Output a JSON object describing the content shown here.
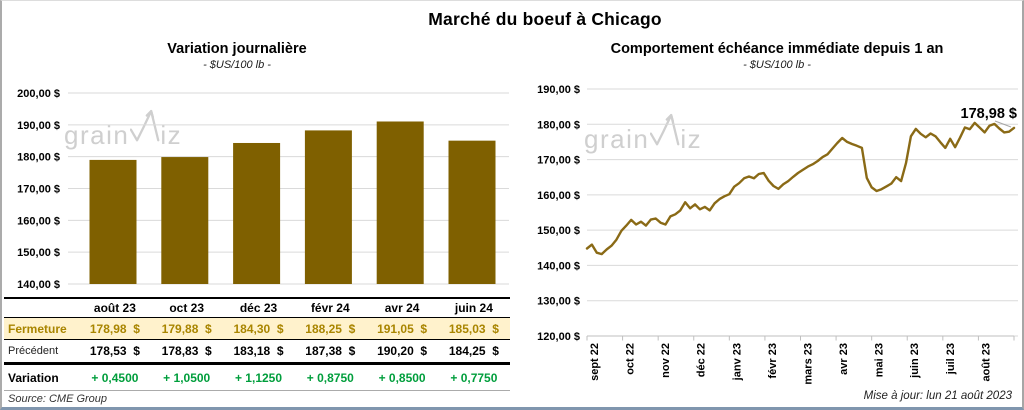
{
  "page": {
    "title": "Marché du boeuf à Chicago",
    "source": "Source: CME Group",
    "updated": "Mise à jour: lun 21 août 2023",
    "watermark_part1": "grain",
    "watermark_part2": "iz"
  },
  "colors": {
    "bar": "#7F6000",
    "line": "#8A6A16",
    "grid": "#DADADA",
    "axis": "#BFBFBF",
    "leader": "#A6A6A6",
    "fermeture_text": "#A98500",
    "fermeture_bg": "#FFF2CC",
    "variation_green": "#009E3C"
  },
  "chart_data": [
    {
      "type": "bar",
      "title": "Variation journalière",
      "subtitle": "- $US/100 lb -",
      "categories": [
        "août 23",
        "oct 23",
        "déc 23",
        "févr 24",
        "avr 24",
        "juin 24"
      ],
      "values": [
        178.98,
        179.88,
        184.3,
        188.25,
        191.05,
        185.03
      ],
      "ylabel": "$US/100 lb",
      "ylim": [
        140,
        200
      ],
      "yticks": [
        "200,00 $",
        "190,00 $",
        "180,00 $",
        "170,00 $",
        "160,00 $",
        "150,00 $",
        "140,00 $"
      ],
      "grid": true,
      "legend": "none"
    },
    {
      "type": "line",
      "title": "Comportement échéance immédiate depuis 1 an",
      "subtitle": "- $US/100 lb -",
      "x_labels": [
        "sept 22",
        "oct 22",
        "nov 22",
        "déc 22",
        "janv 23",
        "févr 23",
        "mars 23",
        "avr 23",
        "mai 23",
        "juin 23",
        "juil 23",
        "août 23"
      ],
      "values": [
        144.8,
        145.9,
        143.6,
        143.2,
        144.5,
        145.6,
        147.3,
        149.8,
        151.3,
        152.9,
        151.6,
        152.4,
        151.3,
        153.0,
        153.3,
        152.1,
        151.6,
        153.9,
        154.5,
        155.6,
        157.9,
        156.2,
        157.3,
        155.9,
        156.6,
        155.6,
        157.6,
        158.8,
        159.6,
        160.2,
        162.3,
        163.3,
        164.7,
        165.2,
        164.7,
        165.9,
        166.2,
        164.0,
        162.5,
        161.7,
        163.0,
        163.9,
        165.1,
        166.2,
        167.1,
        168.0,
        168.7,
        169.6,
        170.7,
        171.5,
        173.1,
        174.7,
        176.1,
        175.0,
        174.4,
        173.9,
        173.3,
        164.8,
        162.1,
        161.1,
        161.6,
        162.4,
        163.2,
        165.0,
        163.9,
        169.0,
        176.6,
        178.7,
        177.3,
        176.3,
        177.4,
        176.6,
        174.9,
        173.3,
        175.9,
        173.5,
        176.2,
        179.1,
        178.6,
        180.4,
        179.1,
        177.7,
        179.6,
        180.1,
        178.8,
        177.7,
        177.9,
        178.98
      ],
      "ylabel": "$US/100 lb",
      "ylim": [
        120,
        190
      ],
      "yticks": [
        "190,00 $",
        "180,00 $",
        "170,00 $",
        "160,00 $",
        "150,00 $",
        "140,00 $",
        "130,00 $",
        "120,00 $"
      ],
      "last_value_label": "178,98 $",
      "grid": true,
      "legend": "none"
    }
  ],
  "table": {
    "columns": [
      "",
      "août 23",
      "oct 23",
      "déc 23",
      "févr 24",
      "avr 24",
      "juin 24"
    ],
    "rows": [
      {
        "label": "Fermeture",
        "values": [
          "178,98  $",
          "179,88  $",
          "184,30  $",
          "188,25  $",
          "191,05  $",
          "185,03  $"
        ]
      },
      {
        "label": "Précédent",
        "values": [
          "178,53  $",
          "178,83  $",
          "183,18  $",
          "187,38  $",
          "190,20  $",
          "184,25  $"
        ]
      },
      {
        "label": "Variation",
        "values": [
          "+ 0,4500",
          "+ 1,0500",
          "+ 1,1250",
          "+ 0,8750",
          "+ 0,8500",
          "+ 0,7750"
        ]
      }
    ]
  }
}
